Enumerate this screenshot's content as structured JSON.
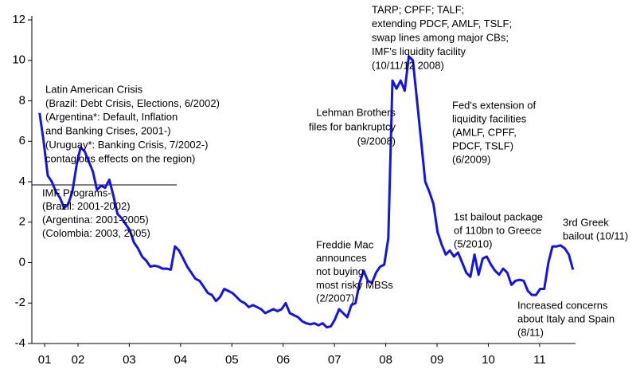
{
  "chart_data": {
    "type": "line",
    "x": [
      2001.75,
      2001.83,
      2001.91,
      2001.99,
      2002.07,
      2002.15,
      2002.23,
      2002.31,
      2002.39,
      2002.47,
      2002.55,
      2002.63,
      2002.71,
      2002.79,
      2002.87,
      2002.95,
      2003.03,
      2003.11,
      2003.19,
      2003.27,
      2003.35,
      2003.43,
      2003.51,
      2003.59,
      2003.67,
      2003.75,
      2003.83,
      2003.91,
      2003.99,
      2004.07,
      2004.15,
      2004.23,
      2004.31,
      2004.39,
      2004.47,
      2004.55,
      2004.63,
      2004.71,
      2004.79,
      2004.87,
      2004.95,
      2005.03,
      2005.11,
      2005.19,
      2005.27,
      2005.35,
      2005.43,
      2005.51,
      2005.59,
      2005.67,
      2005.75,
      2005.83,
      2005.91,
      2005.99,
      2006.07,
      2006.15,
      2006.23,
      2006.31,
      2006.39,
      2006.47,
      2006.55,
      2006.63,
      2006.71,
      2006.79,
      2006.87,
      2006.95,
      2007.03,
      2007.11,
      2007.19,
      2007.27,
      2007.35,
      2007.43,
      2007.51,
      2007.59,
      2007.67,
      2007.75,
      2007.83,
      2007.91,
      2007.99,
      2008.07,
      2008.15,
      2008.23,
      2008.31,
      2008.39,
      2008.47,
      2008.55,
      2008.63,
      2008.71,
      2008.79,
      2008.87,
      2008.95,
      2009.03,
      2009.11,
      2009.19,
      2009.27,
      2009.35,
      2009.43,
      2009.51,
      2009.59,
      2009.67,
      2009.75,
      2009.83,
      2009.91,
      2009.99,
      2010.07,
      2010.15,
      2010.23,
      2010.31,
      2010.39,
      2010.47,
      2010.55,
      2010.63,
      2010.71,
      2010.79,
      2010.87,
      2010.95,
      2011.03,
      2011.11,
      2011.19,
      2011.27,
      2011.35,
      2011.43,
      2011.51,
      2011.59,
      2011.67,
      2011.75,
      2011.83,
      2011.91,
      2011.99,
      2012.07,
      2012.15
    ],
    "series": [
      {
        "color": "#1414e6",
        "values": [
          7.4,
          6.0,
          4.3,
          4.0,
          3.5,
          3.2,
          2.7,
          2.9,
          3.5,
          4.8,
          5.7,
          5.5,
          5.0,
          4.5,
          3.6,
          3.8,
          3.7,
          4.1,
          3.3,
          2.4,
          2.2,
          1.9,
          1.6,
          1.0,
          0.7,
          0.3,
          0.1,
          -0.2,
          -0.15,
          -0.2,
          -0.3,
          -0.3,
          -0.35,
          0.8,
          0.6,
          0.2,
          -0.2,
          -0.5,
          -0.8,
          -0.9,
          -1.2,
          -1.5,
          -1.6,
          -1.9,
          -1.7,
          -1.3,
          -1.4,
          -1.5,
          -1.7,
          -1.9,
          -2.0,
          -2.2,
          -2.1,
          -2.2,
          -2.3,
          -2.5,
          -2.4,
          -2.3,
          -2.4,
          -2.3,
          -2.0,
          -2.5,
          -2.6,
          -2.7,
          -2.9,
          -3.0,
          -3.05,
          -3.0,
          -3.1,
          -3.0,
          -3.2,
          -3.15,
          -2.8,
          -2.3,
          -2.5,
          -2.7,
          -2.1,
          -2.0,
          -1.0,
          -0.4,
          -0.9,
          -1.0,
          -0.5,
          -0.2,
          -0.1,
          1.2,
          9.0,
          8.6,
          9.0,
          8.5,
          10.2,
          10.0,
          8.0,
          6.0,
          4.0,
          3.5,
          2.9,
          1.5,
          0.9,
          0.4,
          0.6,
          0.3,
          0.5,
          0.0,
          -0.5,
          -0.7,
          0.4,
          -0.6,
          0.2,
          0.3,
          -0.1,
          -0.4,
          -0.6,
          -0.3,
          -0.5,
          -1.1,
          -0.9,
          -0.85,
          -0.9,
          -1.4,
          -1.6,
          -1.6,
          -1.3,
          -1.3,
          0.0,
          0.8,
          0.8,
          0.85,
          0.7,
          0.4,
          -0.35
        ]
      }
    ],
    "xlim": [
      2001.6,
      2012.2
    ],
    "xticks": [
      {
        "value": 2001.85,
        "label": "01"
      },
      {
        "value": 2002.5,
        "label": "02"
      },
      {
        "value": 2003.5,
        "label": "03"
      },
      {
        "value": 2004.5,
        "label": "04"
      },
      {
        "value": 2005.5,
        "label": "05"
      },
      {
        "value": 2006.5,
        "label": "06"
      },
      {
        "value": 2007.5,
        "label": "07"
      },
      {
        "value": 2008.5,
        "label": "08"
      },
      {
        "value": 2009.5,
        "label": "09"
      },
      {
        "value": 2010.5,
        "label": "10"
      },
      {
        "value": 2011.5,
        "label": "11"
      }
    ],
    "ylim": [
      -4,
      12
    ],
    "yticks": [
      -4,
      -2,
      0,
      2,
      4,
      6,
      8,
      10,
      12
    ],
    "annotations": [
      [
        "Latin American Crisis",
        "(Brazil: Debt Crisis, Elections, 6/2002)",
        "(Argentina*: Default, Inflation",
        "and Banking Crises, 2001-)",
        "(Uruguay*: Banking Crisis, 7/2002-)",
        "contagious effects on the region)"
      ],
      [
        "IMF Programs-",
        "(Brazil: 2001-2002)",
        "(Argentina: 2001-2005)",
        "(Colombia: 2003, 2005)"
      ],
      [
        "Freddie Mac",
        "announces",
        "not buying",
        "most risky MBSs",
        "(2/2007)"
      ],
      [
        "Lehman Brothers",
        "files for bankruptcy",
        "(9/2008)"
      ],
      [
        "TARP; CPFF; TALF;",
        "extending PDCF, AMLF, TSLF;",
        "swap lines among major CBs;",
        "IMF's liquidity facility",
        "(10/11/12 2008)"
      ],
      [
        "Fed's extension of",
        "liquidity facilities",
        "(AMLF, CPFF,",
        "PDCF, TSLF)",
        "(6/2009)"
      ],
      [
        "1st bailout package",
        "of 110bn to Greece",
        "(5/2010)"
      ],
      [
        "3rd Greek",
        "bailout (10/11)"
      ],
      [
        "Increased concerns",
        "about Italy and Spain",
        "(8/11)"
      ]
    ]
  }
}
